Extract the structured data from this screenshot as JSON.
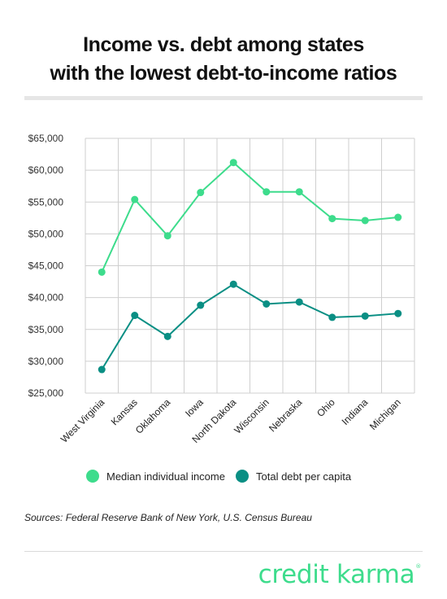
{
  "colors": {
    "income": "#3ddc8c",
    "debt": "#0a8f84",
    "grid": "#cfcfcf",
    "brand": "#3ddc8c"
  },
  "title_line1": "Income vs. debt among states",
  "title_line2": "with the lowest debt-to-income ratios",
  "sources": "Sources: Federal Reserve Bank of New York, U.S. Census Bureau",
  "brand": {
    "text": "credit karma",
    "mark": "®"
  },
  "chart_data": {
    "type": "line",
    "categories": [
      "West Virginia",
      "Kansas",
      "Oklahoma",
      "Iowa",
      "North Dakota",
      "Wisconsin",
      "Nebraska",
      "Ohio",
      "Indiana",
      "Michigan"
    ],
    "series": [
      {
        "name": "Median individual income",
        "values": [
          44000,
          55400,
          49700,
          56500,
          61200,
          56600,
          56600,
          52400,
          52100,
          52600
        ]
      },
      {
        "name": "Total debt per capita",
        "values": [
          28700,
          37200,
          33900,
          38800,
          42100,
          39000,
          39300,
          36900,
          37100,
          37500
        ]
      }
    ],
    "y_ticks": [
      "$25,000",
      "$30,000",
      "$35,000",
      "$40,000",
      "$45,000",
      "$50,000",
      "$55,000",
      "$60,000",
      "$65,000"
    ],
    "ylim": [
      25000,
      65000
    ],
    "grid": true,
    "legend_position": "bottom"
  }
}
